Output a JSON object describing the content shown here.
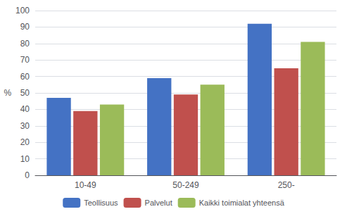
{
  "chart_data": {
    "type": "bar",
    "ylabel": "%",
    "categories": [
      "10-49",
      "50-249",
      "250-"
    ],
    "series": [
      {
        "name": "Teollisuus",
        "values": [
          47,
          59,
          92
        ],
        "color": "#4472C4"
      },
      {
        "name": "Palvelut",
        "values": [
          39,
          49,
          65
        ],
        "color": "#C0504D"
      },
      {
        "name": "Kaikki toimialat yhteensä",
        "values": [
          43,
          55,
          81
        ],
        "color": "#9BBB59"
      }
    ],
    "ylim": [
      0,
      100
    ],
    "yticks": [
      0,
      10,
      20,
      30,
      40,
      50,
      60,
      70,
      80,
      90,
      100
    ],
    "grid": true,
    "legend": "bottom"
  }
}
